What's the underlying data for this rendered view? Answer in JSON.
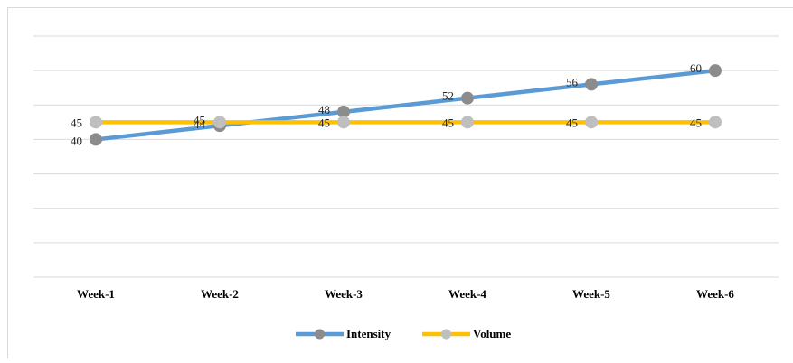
{
  "chart_data": {
    "type": "line",
    "categories": [
      "Week-1",
      "Week-2",
      "Week-3",
      "Week-4",
      "Week-5",
      "Week-6"
    ],
    "series": [
      {
        "name": "Intensity",
        "values": [
          40,
          44,
          48,
          52,
          56,
          60
        ],
        "color": "#5b9bd5",
        "marker_color": "#8c8c8c"
      },
      {
        "name": "Volume",
        "values": [
          45,
          45,
          45,
          45,
          45,
          45
        ],
        "color": "#ffc000",
        "marker_color": "#bfbfbf"
      }
    ],
    "ylim": [
      0,
      70
    ],
    "y_tick_step": 10,
    "y_tick_labels_shown": false,
    "grid": true,
    "data_labels": true,
    "legend": "bottom",
    "title": "",
    "xlabel": "",
    "ylabel": ""
  }
}
